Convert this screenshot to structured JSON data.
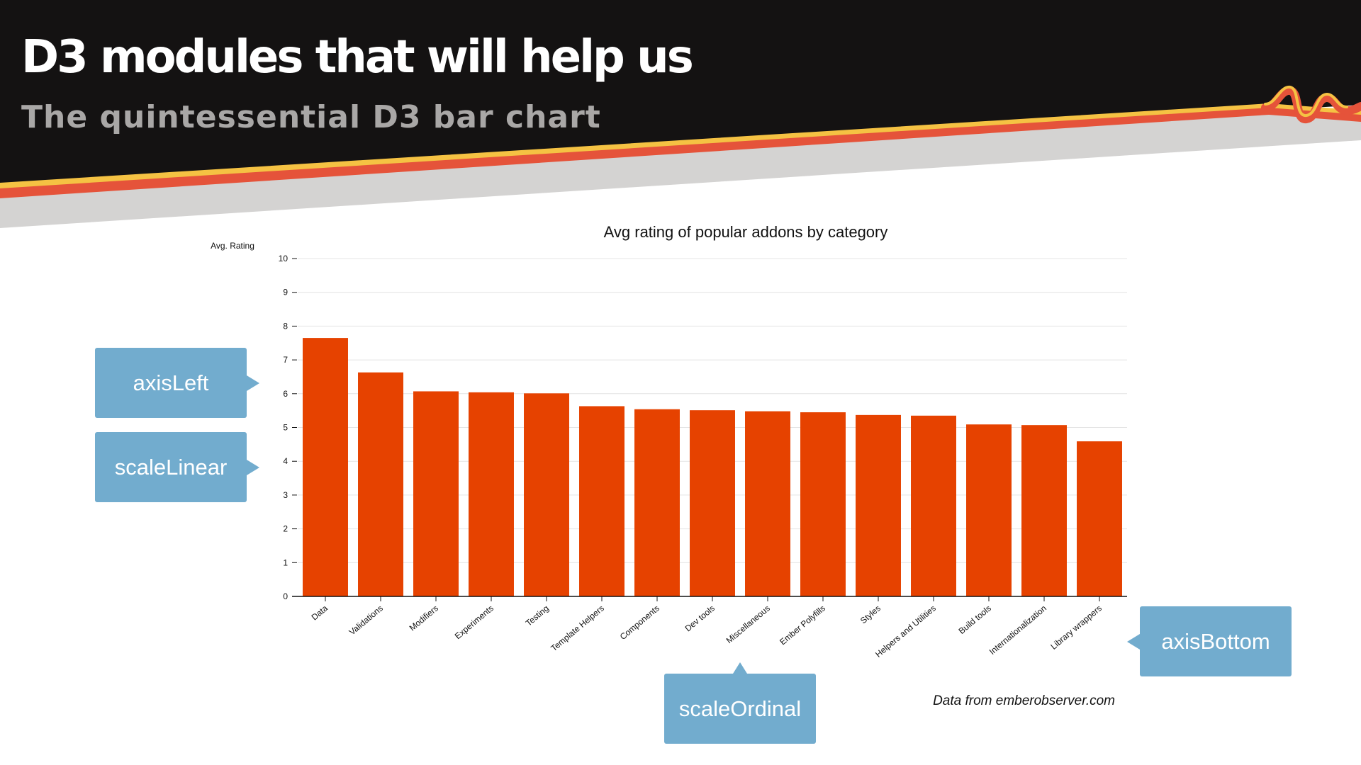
{
  "slide": {
    "title": "D3 modules that will help us",
    "subtitle": "The quintessential D3 bar chart"
  },
  "colors": {
    "banner": "#141212",
    "stripe_yellow": "#f5c243",
    "stripe_red": "#e5533a",
    "stripe_gray": "#d4d3d2",
    "bar": "#e64200",
    "callout": "#72acce"
  },
  "callouts": {
    "axis_left": "axisLeft",
    "scale_linear": "scaleLinear",
    "axis_bottom": "axisBottom",
    "scale_ordinal": "scaleOrdinal"
  },
  "source_note": "Data from emberobserver.com",
  "chart_data": {
    "type": "bar",
    "title": "Avg rating of popular addons by category",
    "ylabel": "Avg. Rating",
    "xlabel": "",
    "ylim": [
      0,
      10
    ],
    "yticks": [
      "0",
      "1",
      "2",
      "3",
      "4",
      "5",
      "6",
      "7",
      "8",
      "9",
      "10"
    ],
    "grid": true,
    "categories": [
      "Data",
      "Validations",
      "Modifiers",
      "Experiments",
      "Testing",
      "Template Helpers",
      "Components",
      "Dev tools",
      "Miscellaneous",
      "Ember Polyfills",
      "Styles",
      "Helpers and Utilities",
      "Build tools",
      "Internationalization",
      "Library wrappers"
    ],
    "values": [
      7.65,
      6.63,
      6.07,
      6.04,
      6.01,
      5.63,
      5.54,
      5.51,
      5.48,
      5.45,
      5.37,
      5.35,
      5.09,
      5.07,
      4.59
    ]
  }
}
